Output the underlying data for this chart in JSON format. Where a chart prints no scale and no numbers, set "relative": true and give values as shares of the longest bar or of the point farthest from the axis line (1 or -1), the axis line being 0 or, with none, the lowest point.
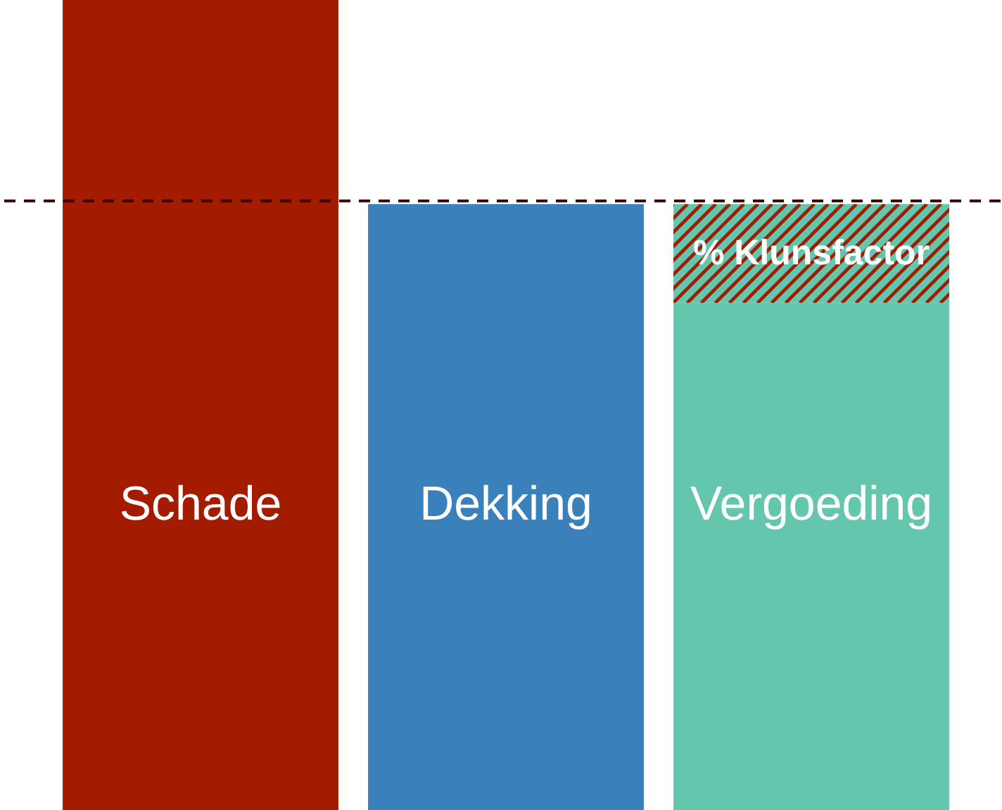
{
  "chart_data": {
    "type": "bar",
    "relative": true,
    "stacked": true,
    "categories": [
      "Schade",
      "Dekking",
      "Vergoeding"
    ],
    "series": [
      {
        "colors": [
          "#a31c00",
          "#3a80bb",
          "#63c6ad"
        ],
        "values": [
          1,
          0.748,
          0.626
        ]
      },
      {
        "name": "% Klunsfactor",
        "color": "#63c6ad",
        "values": [
          null,
          null,
          0.122
        ]
      }
    ],
    "ref_lines": [
      {
        "axis": "y",
        "value": 0.752,
        "color": "#3a0000",
        "line_style": "dashed"
      }
    ],
    "legend": false
  }
}
